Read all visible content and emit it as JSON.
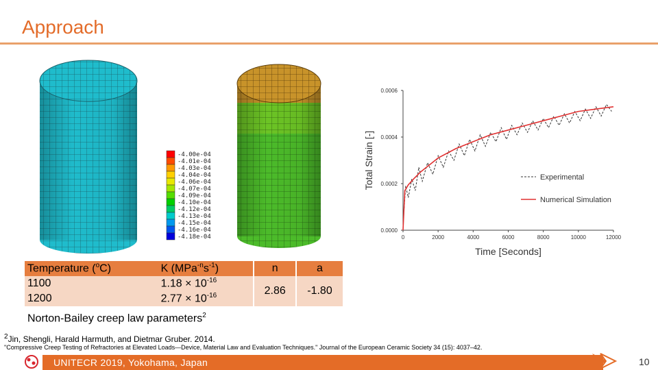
{
  "slide": {
    "title": "Approach",
    "footer": "UNITECR 2019, Yokohama, Japan",
    "page_number": "10",
    "colors": {
      "accent": "#e36c2a",
      "footer": "#e46c27",
      "table_header": "#e67e3f",
      "table_row": "#f6d7c4"
    }
  },
  "legend_scale": {
    "labels": [
      "-4.00e-04",
      "-4.01e-04",
      "-4.03e-04",
      "-4.04e-04",
      "-4.06e-04",
      "-4.07e-04",
      "-4.09e-04",
      "-4.10e-04",
      "-4.12e-04",
      "-4.13e-04",
      "-4.15e-04",
      "-4.16e-04",
      "-4.18e-04"
    ],
    "colors": [
      "#ff0000",
      "#ff4c00",
      "#ff9900",
      "#ffd000",
      "#e8e800",
      "#a6e600",
      "#55dd00",
      "#00d000",
      "#00cc66",
      "#00cccc",
      "#0099ee",
      "#0055ee",
      "#0000dd"
    ]
  },
  "chart_data": {
    "type": "line",
    "xlabel": "Time [Seconds]",
    "ylabel": "Total Strain [-]",
    "xlim": [
      0,
      12000
    ],
    "ylim": [
      0,
      0.0006
    ],
    "x_ticks": [
      "0",
      "2000",
      "4000",
      "6000",
      "8000",
      "10000",
      "12000"
    ],
    "y_ticks": [
      "0.0000",
      "0.0002",
      "0.0004",
      "0.0006"
    ],
    "legend_position": "center-right",
    "series": [
      {
        "name": "Experimental",
        "style": "dashed",
        "color": "#333333",
        "x": [
          0,
          150,
          300,
          500,
          700,
          900,
          1100,
          1400,
          1700,
          2000,
          2300,
          2600,
          2900,
          3200,
          3500,
          3800,
          4100,
          4400,
          4700,
          5000,
          5300,
          5600,
          5900,
          6200,
          6500,
          6800,
          7100,
          7400,
          7700,
          8000,
          8300,
          8600,
          8900,
          9200,
          9500,
          9800,
          10100,
          10400,
          10700,
          11000,
          11300,
          11600,
          11900
        ],
        "y": [
          2e-05,
          0.00019,
          0.00014,
          0.00022,
          0.00017,
          0.00027,
          0.00021,
          0.00029,
          0.00024,
          0.00032,
          0.00027,
          0.00034,
          0.0003,
          0.00037,
          0.00032,
          0.00039,
          0.00034,
          0.00041,
          0.00036,
          0.00042,
          0.00038,
          0.00044,
          0.00039,
          0.00045,
          0.00041,
          0.00046,
          0.00042,
          0.00047,
          0.00043,
          0.00048,
          0.00044,
          0.00049,
          0.00045,
          0.0005,
          0.00046,
          0.00051,
          0.00047,
          0.00052,
          0.00048,
          0.00053,
          0.00049,
          0.00054,
          0.00051
        ]
      },
      {
        "name": "Numerical Simulation",
        "style": "solid",
        "color": "#e03030",
        "x": [
          0,
          100,
          300,
          600,
          1000,
          1500,
          2000,
          3000,
          4000,
          5000,
          6000,
          7000,
          8000,
          9000,
          10000,
          11000,
          12000
        ],
        "y": [
          0.0,
          0.00017,
          0.000195,
          0.00022,
          0.00025,
          0.00028,
          0.00031,
          0.00035,
          0.00038,
          0.00041,
          0.00043,
          0.00045,
          0.00047,
          0.00049,
          0.00051,
          0.00052,
          0.00053
        ]
      }
    ]
  },
  "table": {
    "headers": {
      "temp": "Temperature (",
      "temp_sup": "o",
      "temp_unit": "C)",
      "k": "K (MPa",
      "k_sup1": "-n",
      "k_mid": "s",
      "k_sup2": "-1",
      "k_end": ")",
      "n": "n",
      "a": "a"
    },
    "rows": [
      {
        "temp": "1100",
        "k_base": "1.18 × 10",
        "k_exp": "-16"
      },
      {
        "temp": "1200",
        "k_base": "2.77 × 10",
        "k_exp": "-16"
      }
    ],
    "n_value": "2.86",
    "a_value": "-1.80"
  },
  "caption": {
    "text": "Norton-Bailey creep law parameters",
    "sup": "2"
  },
  "reference": {
    "line1_sup": "2",
    "line1": "Jin, Shengli, Harald Harmuth, and Dietmar Gruber. 2014.",
    "line2": "\"Compressive Creep Testing of Refractories at Elevated Loads—Device, Material Law and Evaluation Techniques.\" Journal of the European Ceramic Society 34 (15): 4037–42."
  }
}
